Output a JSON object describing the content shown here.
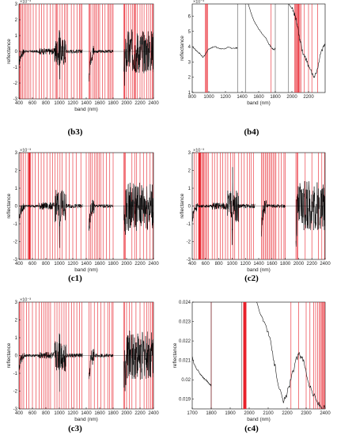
{
  "chart_data": [
    {
      "id": "b3",
      "type": "line",
      "label": "(b3)",
      "xlabel": "band (nm)",
      "ylabel": "reflectance",
      "xlim": [
        400,
        2400
      ],
      "ylim": [
        -3,
        3
      ],
      "yexp": "×10⁻³",
      "xticks": [
        400,
        600,
        800,
        1000,
        1200,
        1400,
        1600,
        1800,
        2000,
        2200,
        2400
      ],
      "yticks": [
        -3,
        -2,
        -1,
        0,
        1,
        2,
        3
      ],
      "signal": {
        "kind": "derivative",
        "gaps": [
          [
            1345,
            1440
          ],
          [
            1800,
            1960
          ]
        ]
      },
      "selected_bands": [
        408,
        418,
        435,
        455,
        478,
        497,
        520,
        545,
        575,
        612,
        655,
        700,
        735,
        768,
        820,
        862,
        905,
        942,
        960,
        975,
        1010,
        1040,
        1075,
        1100,
        1125,
        1178,
        1215,
        1262,
        1298,
        1318,
        1335,
        1440,
        1450,
        1470,
        1500,
        1520,
        1540,
        1560,
        1580,
        1600,
        1640,
        1680,
        1720,
        1740,
        1760,
        1785,
        1800,
        1960,
        1970,
        1975,
        2000,
        2030,
        2060,
        2090,
        2110,
        2120,
        2135,
        2160,
        2200,
        2230,
        2260,
        2300,
        2330,
        2360,
        2385,
        2395
      ]
    },
    {
      "id": "b4",
      "type": "line",
      "label": "(b4)",
      "xlabel": "band (nm)",
      "ylabel": "reflectance",
      "xlim": [
        800,
        2400
      ],
      "ylim": [
        1,
        6.8
      ],
      "yexp": "×10⁻³",
      "xticks": [
        800,
        1000,
        1200,
        1400,
        1600,
        1800,
        2000,
        2200
      ],
      "yticks": [
        1,
        2,
        3,
        4,
        5,
        6
      ],
      "signal": {
        "kind": "spectrum",
        "gaps": [
          [
            1345,
            1440
          ],
          [
            1800,
            1960
          ]
        ],
        "x": [
          800,
          830,
          860,
          900,
          930,
          960,
          990,
          1030,
          1080,
          1120,
          1180,
          1230,
          1280,
          1320,
          1345,
          1440,
          1480,
          1520,
          1560,
          1620,
          1680,
          1720,
          1760,
          1790,
          1800,
          1960,
          2000,
          2020,
          2040,
          2060,
          2080,
          2100,
          2140,
          2180,
          2220,
          2260,
          2300,
          2340,
          2380,
          2400
        ],
        "y": [
          4.0,
          3.85,
          3.7,
          3.5,
          3.3,
          3.5,
          3.8,
          3.95,
          4.0,
          3.9,
          3.85,
          3.95,
          3.9,
          3.9,
          3.95,
          7.5,
          6.7,
          6.0,
          5.5,
          5.0,
          4.6,
          4.2,
          3.9,
          3.8,
          3.9,
          6.8,
          6.5,
          6.3,
          6.0,
          5.5,
          5.0,
          4.3,
          3.5,
          3.0,
          2.5,
          2.0,
          2.4,
          3.5,
          4.0,
          4.1
        ]
      },
      "selected_bands": [
        955,
        965,
        975,
        985,
        1750,
        2035,
        2045,
        2055,
        2062,
        2070,
        2078,
        2085,
        2095,
        2110,
        2150,
        2200,
        2240,
        2310
      ]
    },
    {
      "id": "c1",
      "type": "line",
      "label": "(c1)",
      "xlabel": "band (nm)",
      "ylabel": "reflectance",
      "xlim": [
        400,
        2400
      ],
      "ylim": [
        -3,
        3
      ],
      "yexp": "×10⁻³",
      "xticks": [
        400,
        600,
        800,
        1000,
        1200,
        1400,
        1600,
        1800,
        2000,
        2200,
        2400
      ],
      "yticks": [
        -3,
        -2,
        -1,
        0,
        1,
        2,
        3
      ],
      "signal": {
        "kind": "derivative",
        "gaps": [
          [
            1345,
            1440
          ],
          [
            1800,
            1960
          ]
        ]
      },
      "selected_bands": [
        420,
        440,
        465,
        495,
        530,
        545,
        550,
        555,
        560,
        565,
        570,
        600,
        640,
        690,
        730,
        770,
        815,
        860,
        900,
        935,
        975,
        1010,
        1040,
        1100,
        1150,
        1200,
        1250,
        1320,
        1400,
        1440,
        1465,
        1490,
        1520,
        1545,
        1570,
        1595,
        1620,
        1650,
        1700,
        1750,
        1800,
        1960,
        1970,
        1980,
        2080,
        2120,
        2150,
        2200,
        2250,
        2300,
        2350,
        2390
      ]
    },
    {
      "id": "c2",
      "type": "line",
      "label": "(c2)",
      "xlabel": "band (nm)",
      "ylabel": "reflectance",
      "xlim": [
        400,
        2400
      ],
      "ylim": [
        -3,
        3
      ],
      "yexp": "×10⁻³",
      "xticks": [
        400,
        600,
        800,
        1000,
        1200,
        1400,
        1600,
        1800,
        2000,
        2200,
        2400
      ],
      "yticks": [
        -3,
        -2,
        -1,
        0,
        1,
        2,
        3
      ],
      "signal": {
        "kind": "derivative",
        "gaps": [
          [
            1345,
            1440
          ],
          [
            1800,
            1960
          ]
        ]
      },
      "selected_bands": [
        430,
        460,
        495,
        500,
        505,
        510,
        515,
        520,
        525,
        530,
        545,
        560,
        575,
        590,
        605,
        625,
        645,
        700,
        735,
        775,
        820,
        860,
        900,
        935,
        975,
        1010,
        1040,
        1100,
        1140,
        1180,
        1230,
        1260,
        1290,
        1320,
        1440,
        1460,
        1480,
        1500,
        1520,
        1540,
        1560,
        1580,
        1600,
        1620,
        1640,
        1660,
        1700,
        1740,
        1780,
        1800,
        1960,
        1975,
        1990,
        2100,
        2200,
        2300,
        2350,
        2390
      ]
    },
    {
      "id": "c3",
      "type": "line",
      "label": "(c3)",
      "xlabel": "band (nm)",
      "ylabel": "reflectance",
      "xlim": [
        400,
        2400
      ],
      "ylim": [
        -3,
        3
      ],
      "yexp": "×10⁻³",
      "xticks": [
        400,
        600,
        800,
        1000,
        1200,
        1400,
        1600,
        1800,
        2000,
        2200,
        2400
      ],
      "yticks": [
        -3,
        -2,
        -1,
        0,
        1,
        2,
        3
      ],
      "signal": {
        "kind": "derivative",
        "gaps": [
          [
            1345,
            1440
          ],
          [
            1800,
            1960
          ]
        ]
      },
      "selected_bands": [
        405,
        420,
        445,
        470,
        510,
        545,
        600,
        655,
        700,
        735,
        765,
        790,
        820,
        845,
        870,
        930,
        965,
        1000,
        1035,
        1070,
        1100,
        1140,
        1180,
        1220,
        1260,
        1300,
        1335,
        1440,
        1470,
        1520,
        1570,
        1620,
        1670,
        1720,
        1750,
        1780,
        1800,
        1960,
        1970,
        2000,
        2040,
        2080,
        2140,
        2200,
        2260,
        2300,
        2330,
        2360,
        2380,
        2395
      ]
    },
    {
      "id": "c4",
      "type": "line",
      "label": "(c4)",
      "xlabel": "band (nm)",
      "ylabel": "reflectance",
      "xlim": [
        1700,
        2400
      ],
      "ylim": [
        0.0185,
        0.024
      ],
      "yexp": "",
      "xticks": [
        1700,
        1800,
        1900,
        2000,
        2100,
        2200,
        2300,
        2400
      ],
      "yticks": [
        0.019,
        0.02,
        0.021,
        0.022,
        0.023,
        0.024
      ],
      "ytick_labels": [
        "0.019",
        "0.02",
        "0.021",
        "0.022",
        "0.023",
        "0.024"
      ],
      "signal": {
        "kind": "spectrum",
        "gaps": [
          [
            1800,
            1960
          ]
        ],
        "x": [
          1700,
          1710,
          1720,
          1730,
          1740,
          1750,
          1760,
          1770,
          1780,
          1790,
          1800,
          1960,
          2000,
          2040,
          2070,
          2100,
          2120,
          2140,
          2160,
          2180,
          2200,
          2220,
          2240,
          2260,
          2280,
          2300,
          2320,
          2340,
          2360,
          2380,
          2400
        ],
        "y": [
          0.0212,
          0.0208,
          0.0206,
          0.0205,
          0.0203,
          0.0202,
          0.0201,
          0.02,
          0.0199,
          0.0198,
          0.0197,
          0.026,
          0.025,
          0.024,
          0.0232,
          0.0225,
          0.0215,
          0.0205,
          0.0195,
          0.0188,
          0.0193,
          0.02,
          0.0208,
          0.0213,
          0.0212,
          0.0204,
          0.0196,
          0.0192,
          0.0188,
          0.0186,
          0.0185
        ]
      },
      "selected_bands": [
        1800,
        1970,
        1972,
        1974,
        1976,
        1978,
        1980,
        1982,
        1984,
        2220,
        2260,
        2300,
        2320,
        2340,
        2350,
        2360,
        2370,
        2375,
        2380,
        2385,
        2390,
        2395,
        2398
      ]
    }
  ]
}
